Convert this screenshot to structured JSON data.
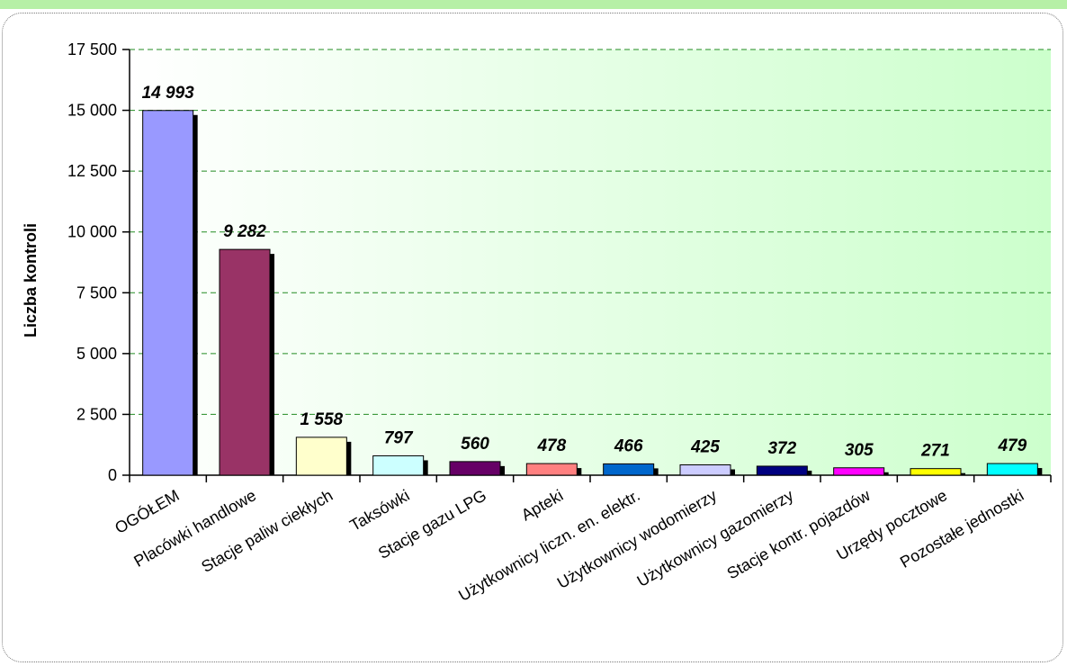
{
  "chart_data": {
    "type": "bar",
    "title": "",
    "xlabel": "",
    "ylabel": "Liczba kontroli",
    "ylim": [
      0,
      17500
    ],
    "yticks": [
      0,
      2500,
      5000,
      7500,
      10000,
      12500,
      15000,
      17500
    ],
    "ytick_labels": [
      "0",
      "2 500",
      "5 000",
      "7 500",
      "10 000",
      "12 500",
      "15 000",
      "17 500"
    ],
    "grid": true,
    "legend": "none",
    "categories": [
      "OGÓŁEM",
      "Placówki handlowe",
      "Stacje paliw ciekłych",
      "Taksówki",
      "Stacje gazu LPG",
      "Apteki",
      "Użytkownicy liczn. en. elektr.",
      "Użytkownicy wodomierzy",
      "Użytkownicy gazomierzy",
      "Stacje kontr. pojazdów",
      "Urzędy pocztowe",
      "Pozostałe jednostki"
    ],
    "values": [
      14993,
      9282,
      1558,
      797,
      560,
      478,
      466,
      425,
      372,
      305,
      271,
      479
    ],
    "value_labels": [
      "14 993",
      "9 282",
      "1 558",
      "797",
      "560",
      "478",
      "466",
      "425",
      "372",
      "305",
      "271",
      "479"
    ],
    "colors": [
      "#9999ff",
      "#993366",
      "#ffffcc",
      "#ccffff",
      "#660066",
      "#ff8080",
      "#0066cc",
      "#ccccff",
      "#000080",
      "#ff00ff",
      "#ffff00",
      "#00ffff"
    ],
    "plot_background": [
      "#ffffff",
      "#ccffcc"
    ],
    "grid_color": "#228b22",
    "shadow_color": "#000000"
  }
}
